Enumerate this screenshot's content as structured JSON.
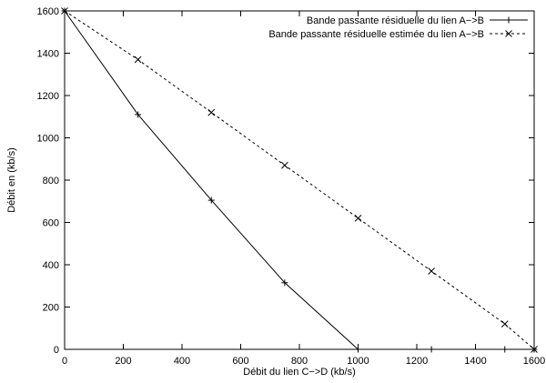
{
  "chart_data": {
    "type": "line",
    "xlabel": "Débit du lien C−>D (kb/s)",
    "ylabel": "Débit en (kb/s)",
    "xlim": [
      0,
      1600
    ],
    "ylim": [
      0,
      1600
    ],
    "xticks": [
      0,
      200,
      400,
      600,
      800,
      1000,
      1200,
      1400,
      1600
    ],
    "yticks": [
      0,
      200,
      400,
      600,
      800,
      1000,
      1200,
      1400,
      1600
    ],
    "grid": false,
    "legend_position": "top-right",
    "series": [
      {
        "name": "Bande passante résiduelle du lien A−>B",
        "line": "solid",
        "marker": "plus",
        "color": "#000000",
        "x": [
          0,
          250,
          500,
          750,
          1000,
          1250,
          1500,
          1600
        ],
        "y": [
          1600,
          1110,
          705,
          315,
          0,
          0,
          0,
          0
        ]
      },
      {
        "name": "Bande passante résiduelle estimée du lien A−>B",
        "line": "dashed",
        "marker": "cross",
        "color": "#000000",
        "x": [
          0,
          250,
          500,
          750,
          1000,
          1250,
          1500,
          1600
        ],
        "y": [
          1600,
          1370,
          1120,
          870,
          620,
          370,
          120,
          0
        ]
      }
    ]
  }
}
